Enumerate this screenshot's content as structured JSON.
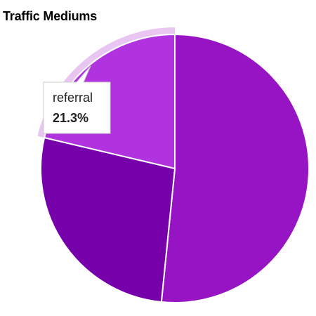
{
  "chart_data": {
    "type": "pie",
    "title": "Traffic Mediums",
    "slices": [
      {
        "name": "",
        "value": 51.6,
        "color": "#9614C4"
      },
      {
        "name": "",
        "value": 27.1,
        "color": "#7600AA"
      },
      {
        "name": "referral",
        "value": 21.3,
        "color": "#B133DF"
      }
    ],
    "highlighted_slice": "referral",
    "highlight_color": "#E9C6F2",
    "legend": "none",
    "tooltip": {
      "label": "referral",
      "value": "21.3%"
    }
  }
}
